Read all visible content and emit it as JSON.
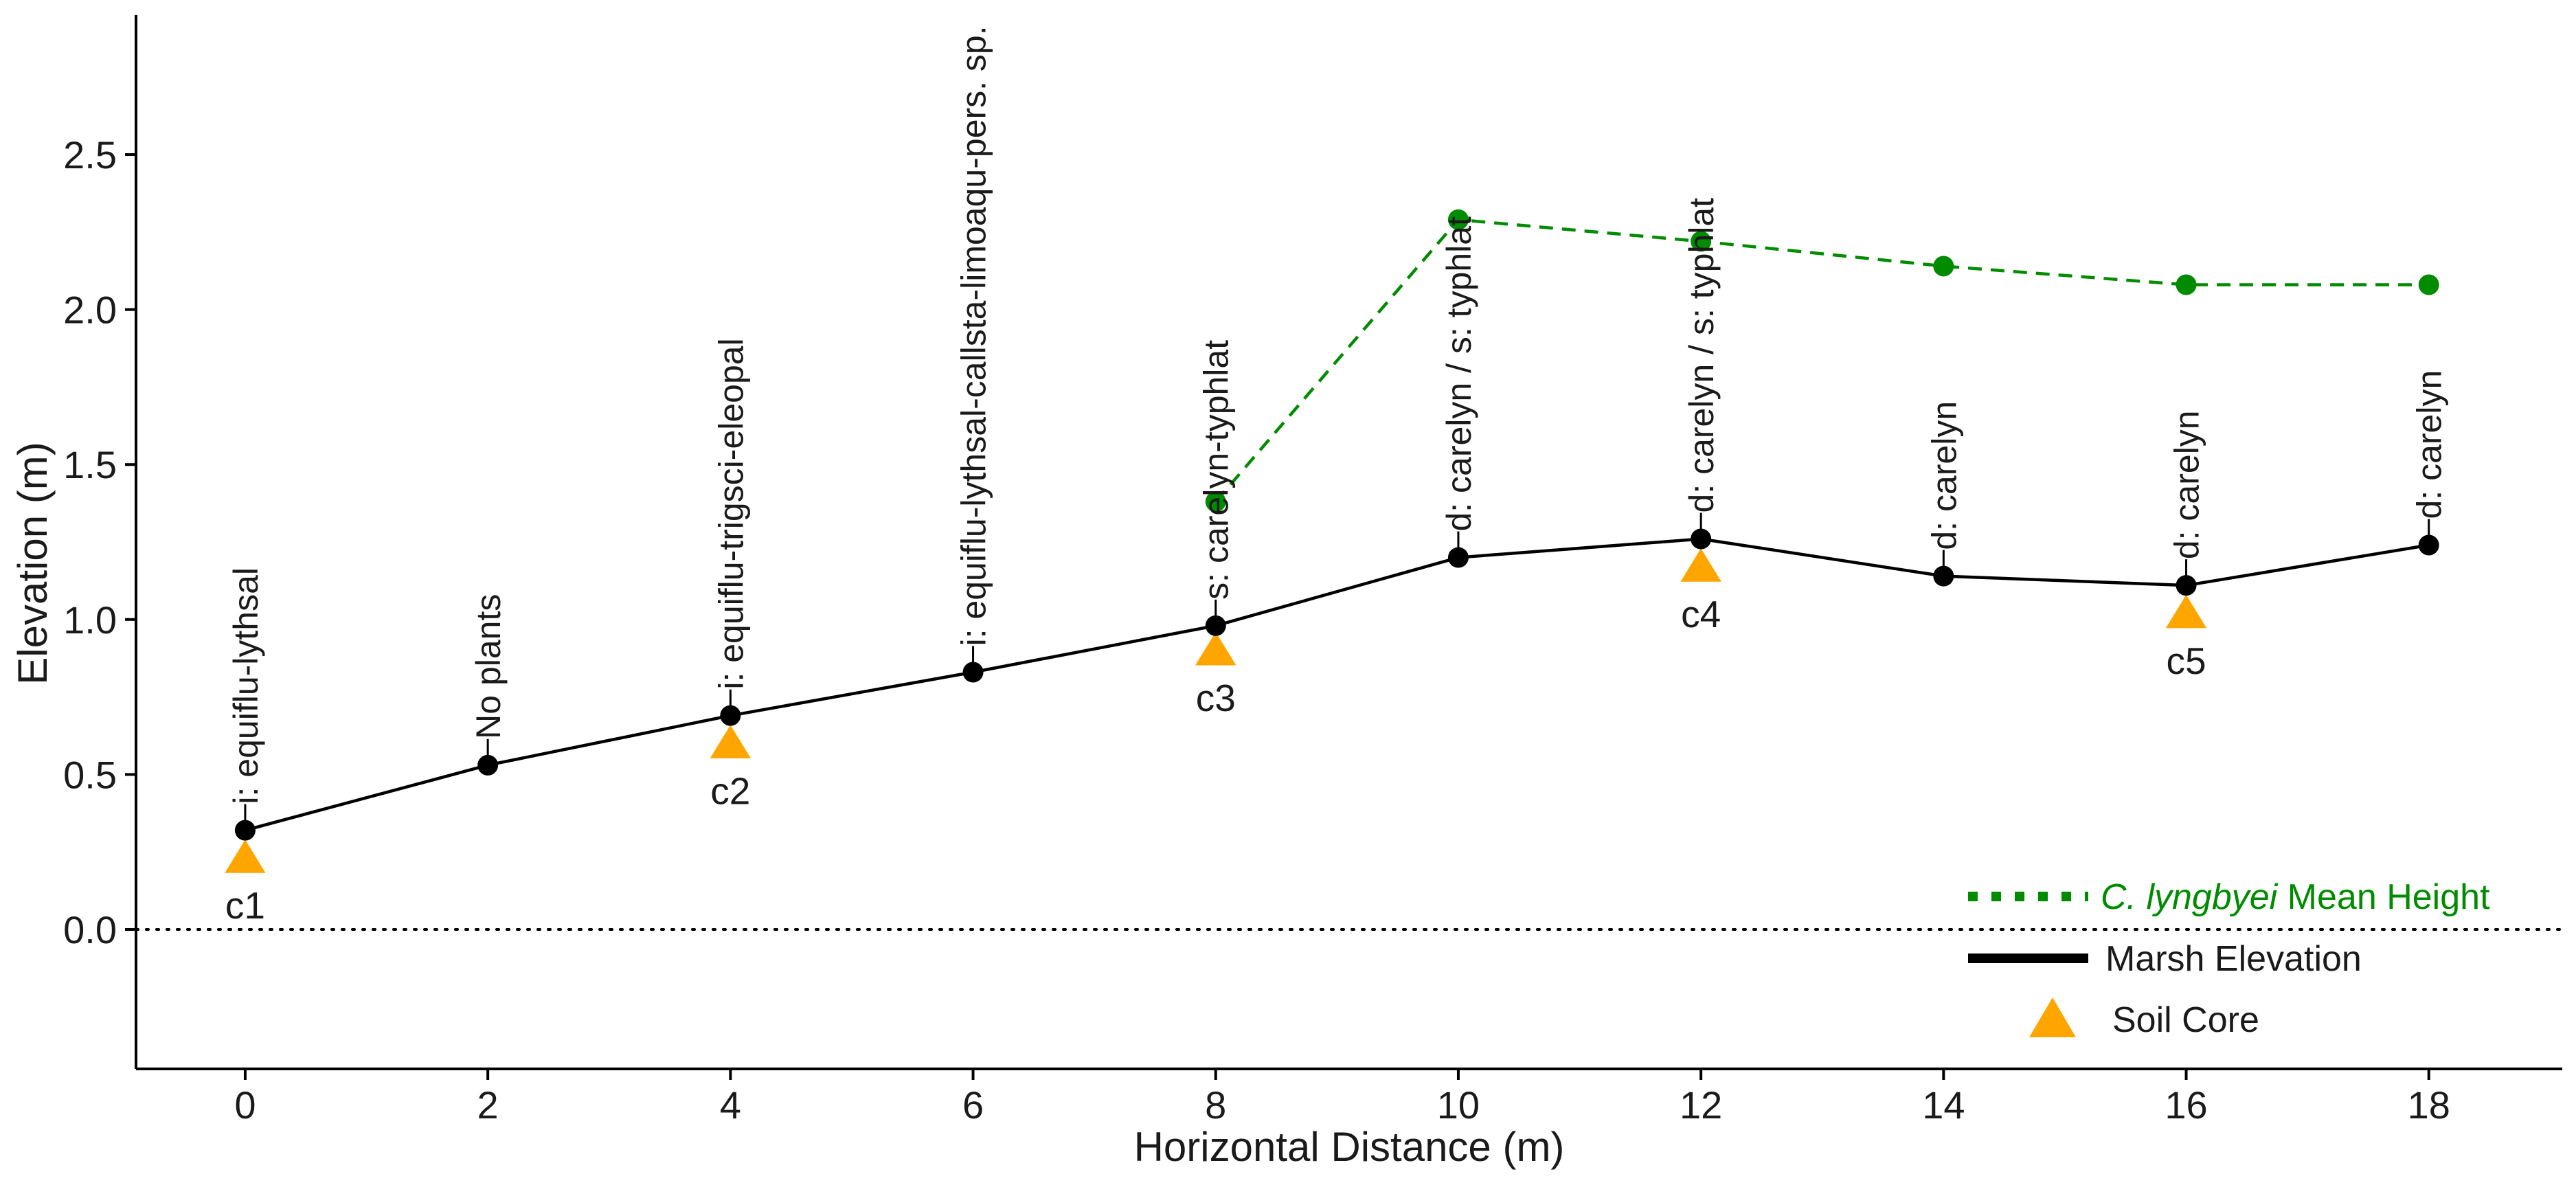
{
  "colors": {
    "marsh": "#000000",
    "height": "#008B00",
    "core": "#FFA500",
    "axis": "#000000"
  },
  "chart_data": {
    "type": "line",
    "xlabel": "Horizontal Distance (m)",
    "ylabel": "Elevation (m)",
    "xlim": [
      -0.9,
      19.1
    ],
    "ylim": [
      -0.45,
      2.95
    ],
    "x_ticks": [
      0,
      2,
      4,
      6,
      8,
      10,
      12,
      14,
      16,
      18
    ],
    "y_ticks": [
      0.0,
      0.5,
      1.0,
      1.5,
      2.0,
      2.5
    ],
    "y_tick_labels": [
      "0.0",
      "0.5",
      "1.0",
      "1.5",
      "2.0",
      "2.5"
    ],
    "reference_line": {
      "y": 0.0,
      "style": "dotted"
    },
    "grid": false,
    "legend_position": "bottom-right",
    "legend": [
      {
        "italic": "C. lyngbyei",
        "text": " Mean Height",
        "style": "dotted",
        "color": "#008B00"
      },
      {
        "italic": "",
        "text": "Marsh Elevation",
        "style": "solid",
        "color": "#000000"
      },
      {
        "italic": "",
        "text": "Soil Core",
        "style": "triangle",
        "color": "#FFA500"
      }
    ],
    "series": [
      {
        "name": "Marsh Elevation",
        "x": [
          0,
          2,
          4,
          6,
          8,
          10,
          12,
          14,
          16,
          18
        ],
        "y": [
          0.32,
          0.53,
          0.69,
          0.83,
          0.98,
          1.2,
          1.26,
          1.14,
          1.11,
          1.24
        ]
      },
      {
        "name": "C. lyngbyei Mean Height",
        "x": [
          8,
          10,
          12,
          14,
          16,
          18
        ],
        "y": [
          1.38,
          2.29,
          2.22,
          2.14,
          2.08,
          2.08
        ]
      }
    ],
    "soil_cores": [
      {
        "x": 0,
        "y": 0.23,
        "label": "c1"
      },
      {
        "x": 4,
        "y": 0.6,
        "label": "c2"
      },
      {
        "x": 8,
        "y": 0.9,
        "label": "c3"
      },
      {
        "x": 12,
        "y": 1.17,
        "label": "c4"
      },
      {
        "x": 16,
        "y": 1.02,
        "label": "c5"
      }
    ],
    "vegetation_labels": [
      {
        "x": 0,
        "text": "i: equiflu-lythsal"
      },
      {
        "x": 2,
        "text": "No plants"
      },
      {
        "x": 4,
        "text": "i: equiflu-trigsci-eleopal"
      },
      {
        "x": 6,
        "text": "i: equiflu-lythsal-callsta-limoaqu-pers. sp."
      },
      {
        "x": 8,
        "text": "s: carelyn-typhlat"
      },
      {
        "x": 10,
        "text": "d: carelyn / s: typhlat"
      },
      {
        "x": 12,
        "text": "d: carelyn / s: typhlat"
      },
      {
        "x": 14,
        "text": "d: carelyn"
      },
      {
        "x": 16,
        "text": "d: carelyn"
      },
      {
        "x": 18,
        "text": "d: carelyn"
      }
    ]
  }
}
